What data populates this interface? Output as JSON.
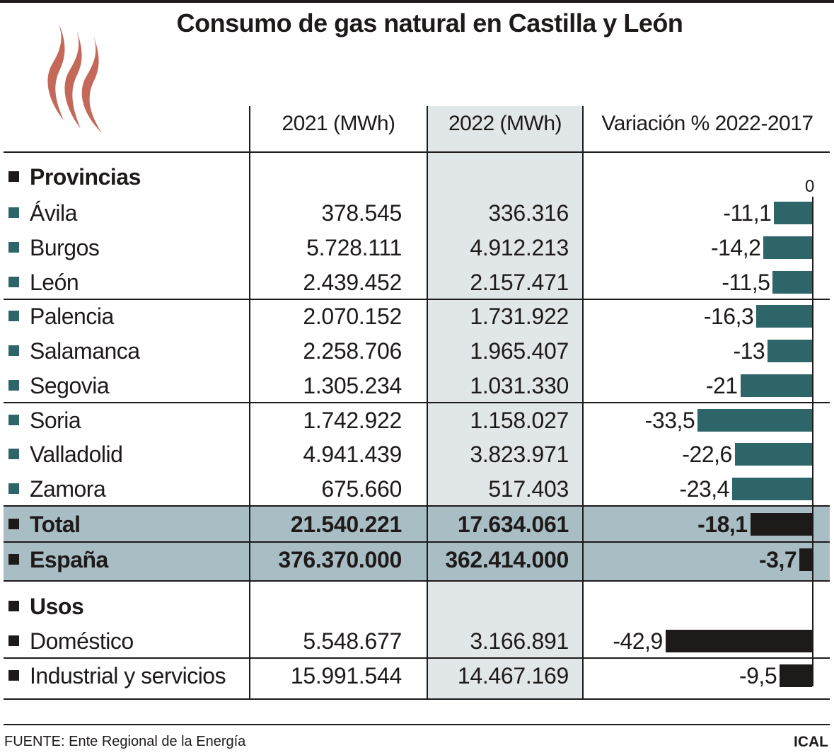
{
  "title": "Consumo de gas natural en Castilla y León",
  "icon": "flame-icon",
  "colors": {
    "province_bar": "#2e6569",
    "total_bar": "#1e1a1a",
    "band": "#a9bec4",
    "highlight_column": "#e1e7e8",
    "flame": "#c4695a"
  },
  "headers": {
    "col1": "2021 (MWh)",
    "col2": "2022 (MWh)",
    "col3": "Variación % 2022-2017"
  },
  "sections": {
    "provincias": "Provincias",
    "usos": "Usos"
  },
  "axis_zero_label": "0",
  "rows": [
    {
      "label": "Ávila",
      "v2021": "378.545",
      "v2022": "336.316",
      "var_label": "-11,1"
    },
    {
      "label": "Burgos",
      "v2021": "5.728.111",
      "v2022": "4.912.213",
      "var_label": "-14,2"
    },
    {
      "label": "León",
      "v2021": "2.439.452",
      "v2022": "2.157.471",
      "var_label": "-11,5"
    },
    {
      "label": "Palencia",
      "v2021": "2.070.152",
      "v2022": "1.731.922",
      "var_label": "-16,3"
    },
    {
      "label": "Salamanca",
      "v2021": "2.258.706",
      "v2022": "1.965.407",
      "var_label": "-13"
    },
    {
      "label": "Segovia",
      "v2021": "1.305.234",
      "v2022": "1.031.330",
      "var_label": "-21"
    },
    {
      "label": "Soria",
      "v2021": "1.742.922",
      "v2022": "1.158.027",
      "var_label": "-33,5"
    },
    {
      "label": "Valladolid",
      "v2021": "4.941.439",
      "v2022": "3.823.971",
      "var_label": "-22,6"
    },
    {
      "label": "Zamora",
      "v2021": "675.660",
      "v2022": "517.403",
      "var_label": "-23,4"
    },
    {
      "label": "Total",
      "v2021": "21.540.221",
      "v2022": "17.634.061",
      "var_label": "-18,1"
    },
    {
      "label": "España",
      "v2021": "376.370.000",
      "v2022": "362.414.000",
      "var_label": "-3,7"
    },
    {
      "label": "Doméstico",
      "v2021": "5.548.677",
      "v2022": "3.166.891",
      "var_label": "-42,9"
    },
    {
      "label": "Industrial y servicios",
      "v2021": "15.991.544",
      "v2022": "14.467.169",
      "var_label": "-9,5"
    }
  ],
  "footer": {
    "source": "FUENTE: Ente Regional de la Energía",
    "credit": "ICAL"
  },
  "chart_data": {
    "type": "table",
    "title": "Consumo de gas natural en Castilla y León",
    "columns": [
      "2021 (MWh)",
      "2022 (MWh)",
      "Variación % 2022-2017"
    ],
    "categories": [
      "Ávila",
      "Burgos",
      "León",
      "Palencia",
      "Salamanca",
      "Segovia",
      "Soria",
      "Valladolid",
      "Zamora",
      "Total",
      "España",
      "Doméstico",
      "Industrial y servicios"
    ],
    "groups": {
      "Provincias": [
        "Ávila",
        "Burgos",
        "León",
        "Palencia",
        "Salamanca",
        "Segovia",
        "Soria",
        "Valladolid",
        "Zamora"
      ],
      "Aggregates": [
        "Total",
        "España"
      ],
      "Usos": [
        "Doméstico",
        "Industrial y servicios"
      ]
    },
    "series": [
      {
        "name": "2021 (MWh)",
        "values": [
          378545,
          5728111,
          2439452,
          2070152,
          2258706,
          1305234,
          1742922,
          4941439,
          675660,
          21540221,
          376370000,
          5548677,
          15991544
        ]
      },
      {
        "name": "2022 (MWh)",
        "values": [
          336316,
          4912213,
          2157471,
          1731922,
          1965407,
          1031330,
          1158027,
          3823971,
          517403,
          17634061,
          362414000,
          3166891,
          14467169
        ]
      },
      {
        "name": "Variación % 2022-2017",
        "type": "bar",
        "values": [
          -11.1,
          -14.2,
          -11.5,
          -16.3,
          -13,
          -21,
          -33.5,
          -22.6,
          -23.4,
          -18.1,
          -3.7,
          -42.9,
          -9.5
        ]
      }
    ],
    "bar_axis": {
      "zero_label": "0",
      "range": [
        -42.9,
        0
      ]
    },
    "source": "FUENTE: Ente Regional de la Energía",
    "credit": "ICAL"
  }
}
